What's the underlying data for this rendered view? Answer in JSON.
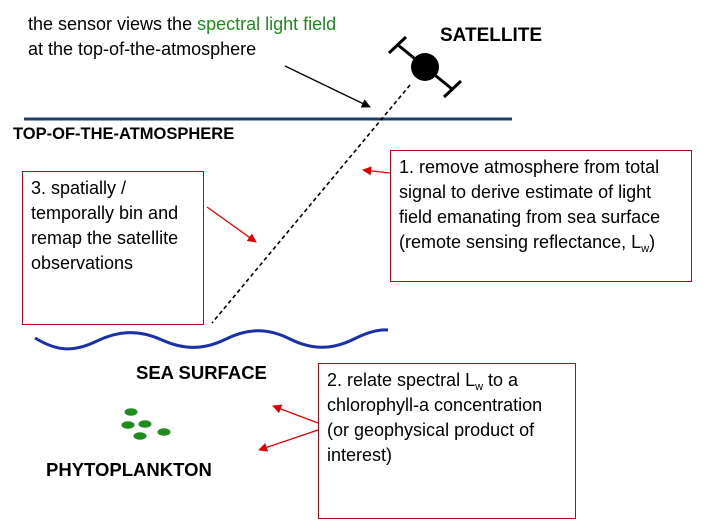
{
  "sensor_caption": {
    "line1_prefix": "the sensor views the ",
    "line1_highlight": "spectral light field",
    "line2": "at the top-of-the-atmosphere"
  },
  "labels": {
    "satellite": "SATELLITE",
    "toa": "TOP-OF-THE-ATMOSPHERE",
    "sea_surface": "SEA SURFACE",
    "phytoplankton": "PHYTOPLANKTON"
  },
  "step1": {
    "text": "1. remove atmosphere from total signal to derive estimate of light field emanating from sea surface (remote sensing reflectance, L",
    "sub": "w",
    "suffix": ")"
  },
  "step2": {
    "prefix": "2. relate spectral L",
    "sub": "w",
    "text": " to a chlorophyll-a concentration (or geophysical product of interest)"
  },
  "step3": {
    "text": "3. spatially / temporally bin and remap the satellite observations"
  },
  "colors": {
    "highlight": "#1f8a1f",
    "toa_line": "#1f3f6b",
    "wave": "#1a2fa8",
    "box_border": "#c0000f",
    "arrow": "#e00000",
    "plankton": "#1e8c1e"
  }
}
